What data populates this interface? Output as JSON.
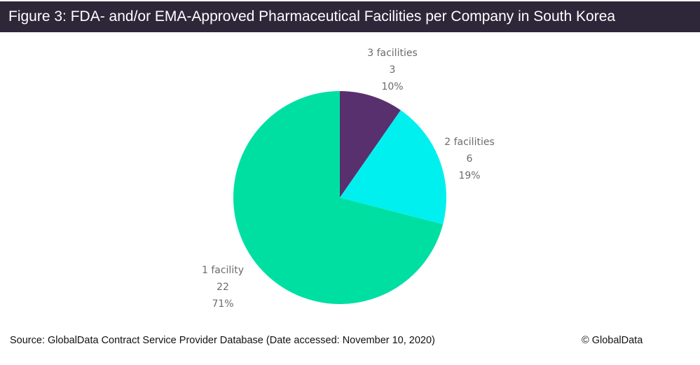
{
  "title": "Figure 3: FDA- and/or EMA-Approved Pharmaceutical Facilities per Company in South Korea",
  "source": "Source: GlobalData Contract Service Provider Database (Date accessed: November 10, 2020)",
  "copyright": "© GlobalData",
  "chart_data": {
    "type": "pie",
    "title": "Figure 3: FDA- and/or EMA-Approved Pharmaceutical Facilities per Company in South Korea",
    "slices": [
      {
        "label": "3 facilities",
        "value": 3,
        "percent": "10%",
        "color": "#58306e"
      },
      {
        "label": "2 facilities",
        "value": 6,
        "percent": "19%",
        "color": "#00f0f0"
      },
      {
        "label": "1 facility",
        "value": 22,
        "percent": "71%",
        "color": "#00dfa2"
      }
    ],
    "start": "top, clockwise"
  }
}
